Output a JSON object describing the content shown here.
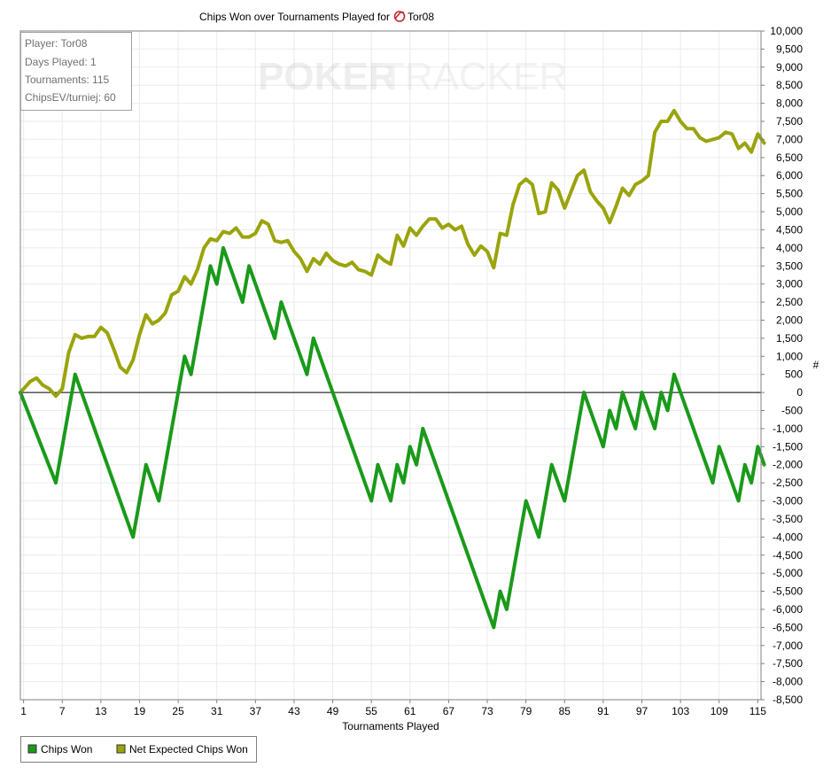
{
  "chart_data": {
    "type": "line",
    "title_prefix": "Chips Won over Tournaments Played for",
    "player_name": "Tor08",
    "xlabel": "Tournaments Played",
    "ylabel": "#",
    "xlim": [
      0,
      115
    ],
    "ylim": [
      -8500,
      10000
    ],
    "x_ticks": [
      1,
      7,
      13,
      19,
      25,
      31,
      37,
      43,
      49,
      55,
      61,
      67,
      73,
      79,
      85,
      91,
      97,
      103,
      109,
      115
    ],
    "y_tick_step": 500,
    "grid": true,
    "watermark_left": "POKER",
    "watermark_right": "TRACKER",
    "info_box": [
      "Player: Tor08",
      "Days Played: 1",
      "Tournaments: 115",
      "ChipsEV/turniej: 60"
    ],
    "legend_position": "bottom-left",
    "series": [
      {
        "name": "Chips Won",
        "color": "#1a9a1a",
        "points": [
          [
            0,
            0
          ],
          [
            5.5,
            -2500
          ],
          [
            8.5,
            500
          ],
          [
            17.5,
            -4000
          ],
          [
            19.5,
            -2000
          ],
          [
            21.5,
            -3000
          ],
          [
            25.5,
            1000
          ],
          [
            26.5,
            500
          ],
          [
            29.5,
            3500
          ],
          [
            30.5,
            3000
          ],
          [
            31.5,
            4000
          ],
          [
            34.5,
            2500
          ],
          [
            35.5,
            3500
          ],
          [
            39.5,
            1500
          ],
          [
            40.5,
            2500
          ],
          [
            44.5,
            500
          ],
          [
            45.5,
            1500
          ],
          [
            54.5,
            -3000
          ],
          [
            55.5,
            -2000
          ],
          [
            57.5,
            -3000
          ],
          [
            58.5,
            -2000
          ],
          [
            59.5,
            -2500
          ],
          [
            60.5,
            -1500
          ],
          [
            61.5,
            -2000
          ],
          [
            62.5,
            -1000
          ],
          [
            73.5,
            -6500
          ],
          [
            74.5,
            -5500
          ],
          [
            75.5,
            -6000
          ],
          [
            78.5,
            -3000
          ],
          [
            80.5,
            -4000
          ],
          [
            82.5,
            -2000
          ],
          [
            84.5,
            -3000
          ],
          [
            87.5,
            0
          ],
          [
            90.5,
            -1500
          ],
          [
            91.5,
            -500
          ],
          [
            92.5,
            -1000
          ],
          [
            93.5,
            0
          ],
          [
            95.5,
            -1000
          ],
          [
            96.5,
            0
          ],
          [
            98.5,
            -1000
          ],
          [
            99.5,
            0
          ],
          [
            100.5,
            -500
          ],
          [
            101.5,
            500
          ],
          [
            107.5,
            -2500
          ],
          [
            108.5,
            -1500
          ],
          [
            111.5,
            -3000
          ],
          [
            112.5,
            -2000
          ],
          [
            113.5,
            -2500
          ],
          [
            114.5,
            -1500
          ],
          [
            115.5,
            -2000
          ]
        ]
      },
      {
        "name": "Net Expected Chips Won",
        "color": "#9aa40c",
        "points": [
          [
            0,
            0
          ],
          [
            1.5,
            300
          ],
          [
            2.5,
            400
          ],
          [
            3.5,
            200
          ],
          [
            4.5,
            100
          ],
          [
            5.5,
            -100
          ],
          [
            6.5,
            100
          ],
          [
            7.5,
            1100
          ],
          [
            8.5,
            1600
          ],
          [
            9.5,
            1500
          ],
          [
            10.5,
            1550
          ],
          [
            11.5,
            1550
          ],
          [
            12.5,
            1800
          ],
          [
            13.5,
            1650
          ],
          [
            14.5,
            1200
          ],
          [
            15.5,
            700
          ],
          [
            16.5,
            550
          ],
          [
            17.5,
            900
          ],
          [
            18.5,
            1600
          ],
          [
            19.5,
            2150
          ],
          [
            20.5,
            1900
          ],
          [
            21.5,
            2000
          ],
          [
            22.5,
            2200
          ],
          [
            23.5,
            2700
          ],
          [
            24.5,
            2800
          ],
          [
            25.5,
            3200
          ],
          [
            26.5,
            3000
          ],
          [
            27.5,
            3400
          ],
          [
            28.5,
            4000
          ],
          [
            29.5,
            4250
          ],
          [
            30.5,
            4200
          ],
          [
            31.5,
            4450
          ],
          [
            32.5,
            4400
          ],
          [
            33.5,
            4550
          ],
          [
            34.5,
            4300
          ],
          [
            35.5,
            4300
          ],
          [
            36.5,
            4400
          ],
          [
            37.5,
            4750
          ],
          [
            38.5,
            4650
          ],
          [
            39.5,
            4200
          ],
          [
            40.5,
            4150
          ],
          [
            41.5,
            4200
          ],
          [
            42.5,
            3900
          ],
          [
            43.5,
            3700
          ],
          [
            44.5,
            3350
          ],
          [
            45.5,
            3700
          ],
          [
            46.5,
            3550
          ],
          [
            47.5,
            3850
          ],
          [
            48.5,
            3650
          ],
          [
            49.5,
            3550
          ],
          [
            50.5,
            3500
          ],
          [
            51.5,
            3600
          ],
          [
            52.5,
            3400
          ],
          [
            53.5,
            3350
          ],
          [
            54.5,
            3250
          ],
          [
            55.5,
            3800
          ],
          [
            56.5,
            3650
          ],
          [
            57.5,
            3550
          ],
          [
            58.5,
            4350
          ],
          [
            59.5,
            4050
          ],
          [
            60.5,
            4550
          ],
          [
            61.5,
            4350
          ],
          [
            62.5,
            4600
          ],
          [
            63.5,
            4800
          ],
          [
            64.5,
            4800
          ],
          [
            65.5,
            4550
          ],
          [
            66.5,
            4650
          ],
          [
            67.5,
            4500
          ],
          [
            68.5,
            4600
          ],
          [
            69.5,
            4100
          ],
          [
            70.5,
            3800
          ],
          [
            71.5,
            4050
          ],
          [
            72.5,
            3900
          ],
          [
            73.5,
            3450
          ],
          [
            74.5,
            4400
          ],
          [
            75.5,
            4350
          ],
          [
            76.5,
            5200
          ],
          [
            77.5,
            5750
          ],
          [
            78.5,
            5900
          ],
          [
            79.5,
            5750
          ],
          [
            80.5,
            4950
          ],
          [
            81.5,
            5000
          ],
          [
            82.5,
            5800
          ],
          [
            83.5,
            5600
          ],
          [
            84.5,
            5100
          ],
          [
            85.5,
            5550
          ],
          [
            86.5,
            6000
          ],
          [
            87.5,
            6150
          ],
          [
            88.5,
            5550
          ],
          [
            89.5,
            5300
          ],
          [
            90.5,
            5100
          ],
          [
            91.5,
            4700
          ],
          [
            92.5,
            5150
          ],
          [
            93.5,
            5650
          ],
          [
            94.5,
            5450
          ],
          [
            95.5,
            5750
          ],
          [
            96.5,
            5850
          ],
          [
            97.5,
            6000
          ],
          [
            98.5,
            7200
          ],
          [
            99.5,
            7500
          ],
          [
            100.5,
            7500
          ],
          [
            101.5,
            7800
          ],
          [
            102.5,
            7500
          ],
          [
            103.5,
            7300
          ],
          [
            104.5,
            7300
          ],
          [
            105.5,
            7050
          ],
          [
            106.5,
            6950
          ],
          [
            107.5,
            7000
          ],
          [
            108.5,
            7050
          ],
          [
            109.5,
            7200
          ],
          [
            110.5,
            7150
          ],
          [
            111.5,
            6750
          ],
          [
            112.5,
            6900
          ],
          [
            113.5,
            6650
          ],
          [
            114.5,
            7150
          ],
          [
            115.5,
            6900
          ]
        ]
      }
    ]
  }
}
